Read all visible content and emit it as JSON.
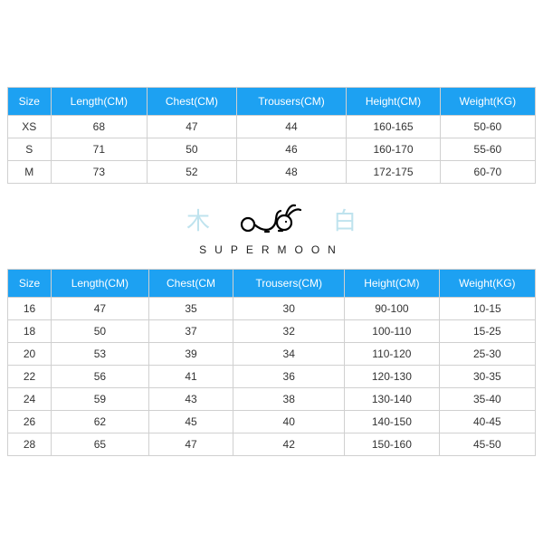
{
  "table1": {
    "type": "table",
    "header_bg": "#1da1f2",
    "header_fg": "#ffffff",
    "border_color": "#d0d0d0",
    "cell_fg": "#333333",
    "font_size": 12,
    "columns": [
      "Size",
      "Length(CM)",
      "Chest(CM)",
      "Trousers(CM)",
      "Height(CM)",
      "Weight(KG)"
    ],
    "rows": [
      [
        "XS",
        "68",
        "47",
        "44",
        "160-165",
        "50-60"
      ],
      [
        "S",
        "71",
        "50",
        "46",
        "160-170",
        "55-60"
      ],
      [
        "M",
        "73",
        "52",
        "48",
        "172-175",
        "60-70"
      ]
    ]
  },
  "brand": {
    "left_char": "木",
    "right_char": "白",
    "name": "SUPERMOON",
    "char_color": "#bfe3ee",
    "name_color": "#222222",
    "logo_stroke": "#000000"
  },
  "table2": {
    "type": "table",
    "header_bg": "#1da1f2",
    "header_fg": "#ffffff",
    "border_color": "#d0d0d0",
    "cell_fg": "#333333",
    "font_size": 12,
    "columns": [
      "Size",
      "Length(CM)",
      "Chest(CM",
      "Trousers(CM)",
      "Height(CM)",
      "Weight(KG)"
    ],
    "rows": [
      [
        "16",
        "47",
        "35",
        "30",
        "90-100",
        "10-15"
      ],
      [
        "18",
        "50",
        "37",
        "32",
        "100-110",
        "15-25"
      ],
      [
        "20",
        "53",
        "39",
        "34",
        "110-120",
        "25-30"
      ],
      [
        "22",
        "56",
        "41",
        "36",
        "120-130",
        "30-35"
      ],
      [
        "24",
        "59",
        "43",
        "38",
        "130-140",
        "35-40"
      ],
      [
        "26",
        "62",
        "45",
        "40",
        "140-150",
        "40-45"
      ],
      [
        "28",
        "65",
        "47",
        "42",
        "150-160",
        "45-50"
      ]
    ]
  }
}
